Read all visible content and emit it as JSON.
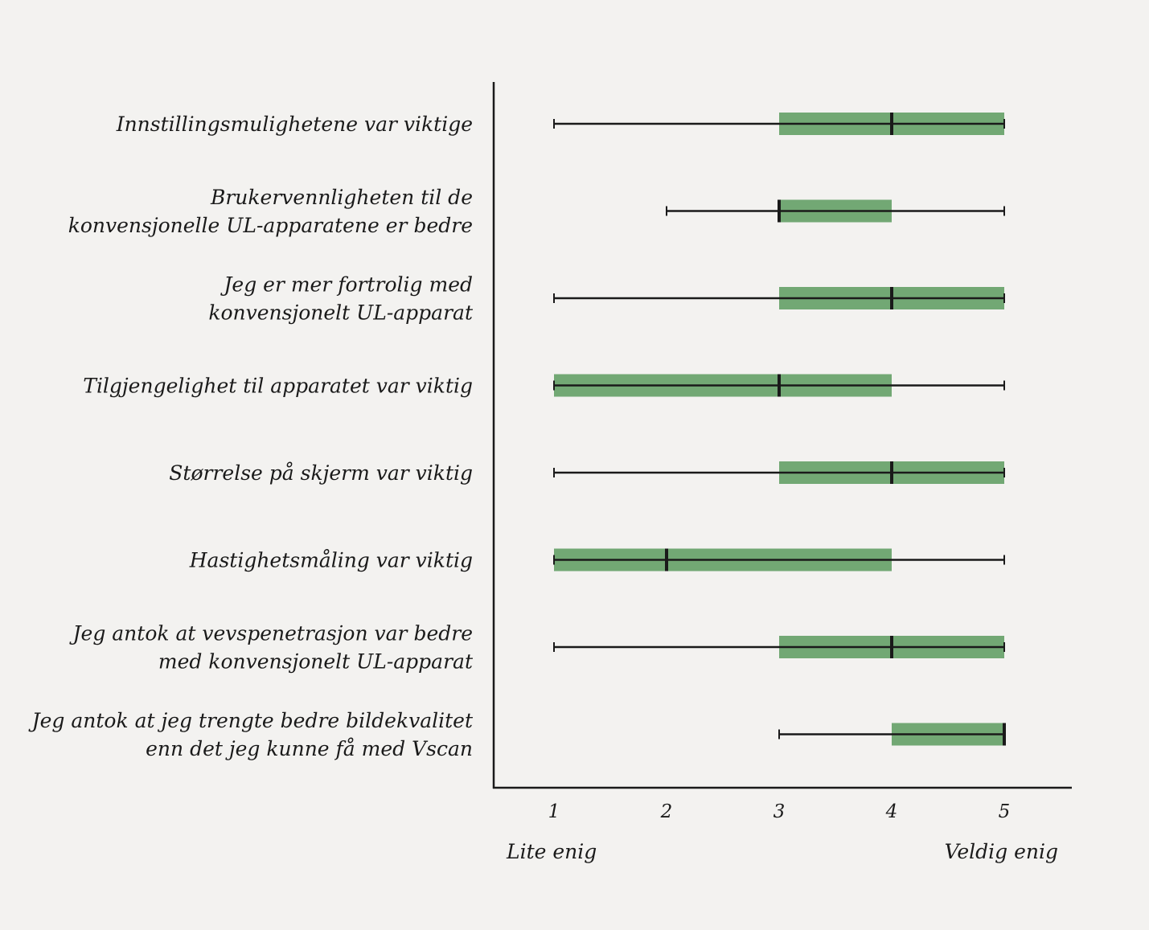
{
  "chart_data": {
    "type": "boxplot",
    "orientation": "horizontal",
    "categories": [
      [
        "Innstillingsmulighetene var viktige"
      ],
      [
        "Brukervennligheten til de",
        "konvensjonelle UL-apparatene er bedre"
      ],
      [
        "Jeg er mer fortrolig med",
        "konvensjonelt UL-apparat"
      ],
      [
        "Tilgjengelighet til apparatet  var viktig"
      ],
      [
        "Størrelse på skjerm var viktig"
      ],
      [
        "Hastighetsmåling var viktig"
      ],
      [
        "Jeg antok at vevspenetrasjon  var bedre",
        "med konvensjonelt UL-apparat"
      ],
      [
        "Jeg antok at jeg trengte bedre bildekvalitet",
        "enn det jeg kunne få med Vscan"
      ]
    ],
    "boxes": [
      {
        "min": 1,
        "q1": 3,
        "median": 4,
        "q3": 5,
        "max": 5
      },
      {
        "min": 2,
        "q1": 3,
        "median": 3,
        "q3": 4,
        "max": 5
      },
      {
        "min": 1,
        "q1": 3,
        "median": 4,
        "q3": 5,
        "max": 5
      },
      {
        "min": 1,
        "q1": 1,
        "median": 3,
        "q3": 4,
        "max": 5
      },
      {
        "min": 1,
        "q1": 3,
        "median": 4,
        "q3": 5,
        "max": 5
      },
      {
        "min": 1,
        "q1": 1,
        "median": 2,
        "q3": 4,
        "max": 5
      },
      {
        "min": 1,
        "q1": 3,
        "median": 4,
        "q3": 5,
        "max": 5
      },
      {
        "min": 3,
        "q1": 4,
        "median": 5,
        "q3": 5,
        "max": 5
      }
    ],
    "x_ticks": [
      "1",
      "2",
      "3",
      "4",
      "5"
    ],
    "xlim": [
      0.47,
      5.6
    ],
    "x_end_labels": {
      "low": "Lite enig",
      "high": "Veldig enig"
    },
    "box_color": "#72a874",
    "line_color": "#1a1a1a",
    "grid": false
  }
}
